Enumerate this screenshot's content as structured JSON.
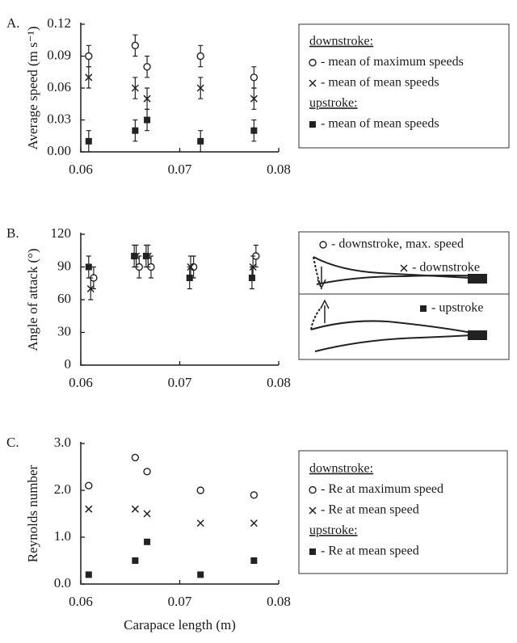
{
  "chart_data": [
    {
      "type": "scatter",
      "panel_label": "A.",
      "ylabel": "Average speed (m s⁻¹)",
      "xlim": [
        0.06,
        0.08
      ],
      "xticks": [
        0.06,
        0.07,
        0.08
      ],
      "ylim": [
        0,
        0.12
      ],
      "yticks": [
        {
          "value": 0,
          "label": "0.00"
        },
        0.03,
        0.06,
        0.09,
        0.12
      ],
      "series": [
        {
          "name": "- mean of maximum speeds",
          "group": "downstroke:",
          "marker": "circle",
          "color": "#222222",
          "x": [
            0.0608,
            0.0655,
            0.0667,
            0.0721,
            0.0775
          ],
          "values": [
            0.09,
            0.1,
            0.08,
            0.09,
            0.07
          ],
          "errors": [
            0.01,
            0.01,
            0.01,
            0.01,
            0.01
          ]
        },
        {
          "name": "- mean of mean speeds",
          "group": "downstroke:",
          "marker": "cross",
          "color": "#222222",
          "x": [
            0.0608,
            0.0655,
            0.0667,
            0.0721,
            0.0775
          ],
          "values": [
            0.07,
            0.06,
            0.05,
            0.06,
            0.05
          ],
          "errors": [
            0.01,
            0.01,
            0.01,
            0.01,
            0.01
          ]
        },
        {
          "name": "- mean of mean speeds",
          "group": "upstroke:",
          "marker": "square",
          "color": "#222222",
          "x": [
            0.0608,
            0.0655,
            0.0667,
            0.0721,
            0.0775
          ],
          "values": [
            0.01,
            0.02,
            0.03,
            0.01,
            0.02
          ],
          "errors": [
            0.01,
            0.01,
            0.01,
            0.01,
            0.01
          ]
        }
      ]
    },
    {
      "type": "scatter",
      "panel_label": "B.",
      "ylabel": "Angle of attack (°)",
      "xlim": [
        0.06,
        0.08
      ],
      "xticks": [
        0.06,
        0.07,
        0.08
      ],
      "ylim": [
        0,
        120
      ],
      "yticks": [
        0,
        30,
        60,
        90,
        120
      ],
      "series": [
        {
          "name": "- downstroke, max. speed",
          "marker": "circle",
          "color": "#222222",
          "x": [
            0.0613,
            0.0659,
            0.0671,
            0.0714,
            0.0777
          ],
          "values": [
            80,
            90,
            90,
            90,
            100
          ],
          "errors": [
            10,
            10,
            10,
            10,
            10
          ]
        },
        {
          "name": "- downstroke",
          "marker": "cross",
          "color": "#222222",
          "x": [
            0.061,
            0.0656,
            0.0668,
            0.0711,
            0.0774
          ],
          "values": [
            70,
            100,
            100,
            90,
            90
          ],
          "errors": [
            10,
            10,
            10,
            10,
            10
          ]
        },
        {
          "name": "- upstroke",
          "marker": "square",
          "color": "#222222",
          "x": [
            0.0608,
            0.0654,
            0.0666,
            0.071,
            0.0773
          ],
          "values": [
            90,
            100,
            100,
            80,
            80
          ],
          "errors": [
            10,
            10,
            10,
            10,
            10
          ]
        }
      ]
    },
    {
      "type": "scatter",
      "panel_label": "C.",
      "ylabel": "Reynolds number",
      "xlabel": "Carapace length (m)",
      "xlim": [
        0.06,
        0.08
      ],
      "xticks": [
        0.06,
        0.07,
        0.08
      ],
      "ylim": [
        0,
        3
      ],
      "yticks": [
        {
          "value": 0,
          "label": "0.0"
        },
        {
          "value": 1,
          "label": "1.0"
        },
        {
          "value": 2,
          "label": "2.0"
        },
        {
          "value": 3,
          "label": "3.0"
        }
      ],
      "series": [
        {
          "name": "- Re at maximum speed",
          "group": "downstroke:",
          "marker": "circle",
          "color": "#222222",
          "x": [
            0.0608,
            0.0655,
            0.0667,
            0.0721,
            0.0775
          ],
          "values": [
            2.1,
            2.7,
            2.4,
            2.0,
            1.9
          ]
        },
        {
          "name": "- Re at mean speed",
          "group": "downstroke:",
          "marker": "cross",
          "color": "#222222",
          "x": [
            0.0608,
            0.0655,
            0.0667,
            0.0721,
            0.0775
          ],
          "values": [
            1.6,
            1.6,
            1.5,
            1.3,
            1.3
          ]
        },
        {
          "name": "- Re at mean speed",
          "group": "upstroke:",
          "marker": "square",
          "color": "#222222",
          "x": [
            0.0608,
            0.0655,
            0.0667,
            0.0721,
            0.0775
          ],
          "values": [
            0.2,
            0.5,
            0.9,
            0.2,
            0.5
          ]
        }
      ]
    }
  ]
}
